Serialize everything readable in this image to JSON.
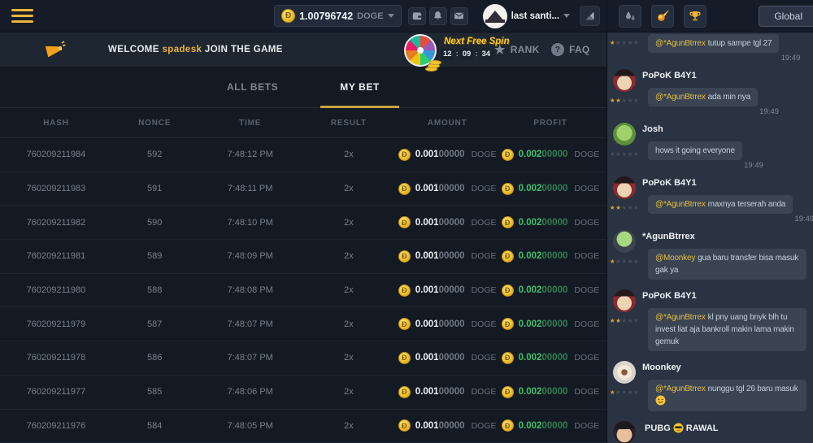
{
  "topbar": {
    "balance": {
      "amount": "1.00796742",
      "currency": "DOGE"
    },
    "user": {
      "name": "last santi..."
    },
    "accent_color": "#e8b33a"
  },
  "banner": {
    "welcome_prefix": "WELCOME",
    "username": "spadesk",
    "welcome_suffix": "JOIN THE GAME",
    "free_spin": {
      "label": "Next Free Spin",
      "timer": {
        "h": "12",
        "m": "09",
        "s": "34"
      },
      "colon": ":"
    },
    "rank_label": "RANK",
    "faq_label": "FAQ"
  },
  "tabs": {
    "all_bets": "ALL BETS",
    "my_bet": "MY BET"
  },
  "table": {
    "headers": [
      "HASH",
      "NONCE",
      "TIME",
      "RESULT",
      "AMOUNT",
      "PROFIT"
    ],
    "rows": [
      {
        "hash": "760209211984",
        "nonce": "592",
        "time": "7:48:12 PM",
        "result": "2x",
        "amount_main": "0.001",
        "amount_zeros": "00000",
        "amount_currency": "DOGE",
        "profit_main": "0.002",
        "profit_zeros": "00000",
        "profit_currency": "DOGE"
      },
      {
        "hash": "760209211983",
        "nonce": "591",
        "time": "7:48:11 PM",
        "result": "2x",
        "amount_main": "0.001",
        "amount_zeros": "00000",
        "amount_currency": "DOGE",
        "profit_main": "0.002",
        "profit_zeros": "00000",
        "profit_currency": "DOGE"
      },
      {
        "hash": "760209211982",
        "nonce": "590",
        "time": "7:48:10 PM",
        "result": "2x",
        "amount_main": "0.001",
        "amount_zeros": "00000",
        "amount_currency": "DOGE",
        "profit_main": "0.002",
        "profit_zeros": "00000",
        "profit_currency": "DOGE"
      },
      {
        "hash": "760209211981",
        "nonce": "589",
        "time": "7:48:09 PM",
        "result": "2x",
        "amount_main": "0.001",
        "amount_zeros": "00000",
        "amount_currency": "DOGE",
        "profit_main": "0.002",
        "profit_zeros": "00000",
        "profit_currency": "DOGE"
      },
      {
        "hash": "760209211980",
        "nonce": "588",
        "time": "7:48:08 PM",
        "result": "2x",
        "amount_main": "0.001",
        "amount_zeros": "00000",
        "amount_currency": "DOGE",
        "profit_main": "0.002",
        "profit_zeros": "00000",
        "profit_currency": "DOGE"
      },
      {
        "hash": "760209211979",
        "nonce": "587",
        "time": "7:48:07 PM",
        "result": "2x",
        "amount_main": "0.001",
        "amount_zeros": "00000",
        "amount_currency": "DOGE",
        "profit_main": "0.002",
        "profit_zeros": "00000",
        "profit_currency": "DOGE"
      },
      {
        "hash": "760209211978",
        "nonce": "586",
        "time": "7:48:07 PM",
        "result": "2x",
        "amount_main": "0.001",
        "amount_zeros": "00000",
        "amount_currency": "DOGE",
        "profit_main": "0.002",
        "profit_zeros": "00000",
        "profit_currency": "DOGE"
      },
      {
        "hash": "760209211977",
        "nonce": "585",
        "time": "7:48:06 PM",
        "result": "2x",
        "amount_main": "0.001",
        "amount_zeros": "00000",
        "amount_currency": "DOGE",
        "profit_main": "0.002",
        "profit_zeros": "00000",
        "profit_currency": "DOGE"
      },
      {
        "hash": "760209211976",
        "nonce": "584",
        "time": "7:48:05 PM",
        "result": "2x",
        "amount_main": "0.001",
        "amount_zeros": "00000",
        "amount_currency": "DOGE",
        "profit_main": "0.002",
        "profit_zeros": "00000",
        "profit_currency": "DOGE"
      }
    ]
  },
  "chat": {
    "channel": "Global",
    "messages": [
      {
        "show_header": false,
        "stars": 1,
        "mention": "@*AgunBtrrex",
        "text": "tutup sampe tgl 27",
        "time": "19:49"
      },
      {
        "name": "PoPoK B4Y1",
        "stars": 2,
        "avatar": "linear-gradient(180deg,#23191c 0 30%,rgba(0,0,0,0) 30%),radial-gradient(circle at 50% 60%,#ecd3b4 0 40%,#8c2a30 42%)",
        "mention": "@*AgunBtrrex",
        "text": "ada min nya",
        "time": "19:49"
      },
      {
        "name": "Josh",
        "stars": 0,
        "avatar": "radial-gradient(circle at 50% 45%,#9fd06a 0 45%,#5d8f3c 47%)",
        "mention": "",
        "text": "hows it going everyone",
        "time": "19:49"
      },
      {
        "name": "PoPoK B4Y1",
        "stars": 2,
        "avatar": "linear-gradient(180deg,#23191c 0 30%,rgba(0,0,0,0) 30%),radial-gradient(circle at 50% 60%,#ecd3b4 0 40%,#8c2a30 42%)",
        "mention": "@*AgunBtrrex",
        "text": "maxnya terserah anda",
        "time": "19:49"
      },
      {
        "name": "*AgunBtrrex",
        "stars": 1,
        "avatar": "radial-gradient(circle at 50% 40%,#a8d87f 0 42%,#3c444f 44%)",
        "mention": "@Moonkey",
        "text": "gua baru transfer bisa masuk gak ya",
        "time": ""
      },
      {
        "name": "PoPoK B4Y1",
        "stars": 2,
        "avatar": "linear-gradient(180deg,#23191c 0 30%,rgba(0,0,0,0) 30%),radial-gradient(circle at 50% 60%,#ecd3b4 0 40%,#8c2a30 42%)",
        "mention": "@*AgunBtrrex",
        "text": "kl pny uang bnyk blh tu invest liat aja bankroll makin lama makin gemuk",
        "time": ""
      },
      {
        "name": "Moonkey",
        "stars": 1,
        "avatar": "radial-gradient(circle at 50% 50%,#8a5a3a 0 18%,#f5e9d8 20% 45%,#d8d4cc 47%)",
        "mention": "@*AgunBtrrex",
        "text": "nunggu tgl 26 baru masuk",
        "time": "",
        "emoji": "wink"
      },
      {
        "name_pre": "PUBG",
        "name_emoji": "cool",
        "name_post": "RAWAL",
        "avatar": "linear-gradient(180deg,#1d1a1e 0 35%,rgba(0,0,0,0) 35%),radial-gradient(circle at 50% 60%,#e8c09a 0 42%,#2a2430 44%)",
        "mention": "",
        "text": "",
        "time": ""
      }
    ]
  },
  "colors": {
    "accent": "#e8b33a",
    "profit_green": "#3fc06a",
    "mention_yellow": "#e5be43"
  }
}
